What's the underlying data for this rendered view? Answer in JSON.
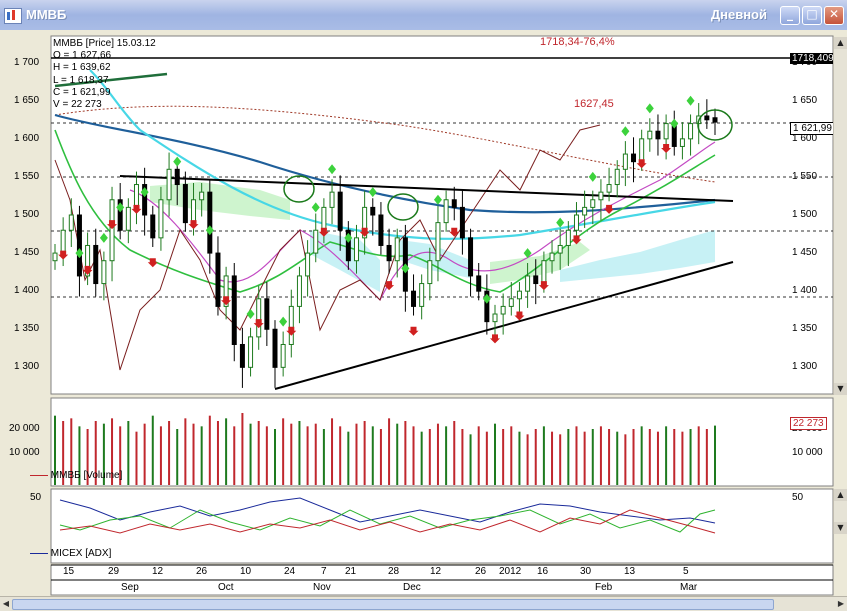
{
  "window": {
    "title": "ММВБ",
    "period": "Дневной"
  },
  "info": {
    "header": "ММВБ [Price] 15.03.12",
    "o": "O = 1 627,66",
    "h": "H = 1 639,62",
    "l": "L = 1 618,37",
    "c": "C = 1 621,99",
    "v": "V = 22 273"
  },
  "annotations": {
    "target": "1718,34-76,4%",
    "level": "1627,45"
  },
  "price_axis": {
    "ticks": [
      "1 700",
      "1 650",
      "1 600",
      "1 550",
      "1 500",
      "1 450",
      "1 400",
      "1 350",
      "1 300"
    ],
    "marker_top": "1718,409",
    "marker_last": "1 621,99"
  },
  "volume_axis": {
    "ticks": [
      "20 000",
      "10 000"
    ],
    "marker_last": "22 273",
    "series_label": "ММВБ [Volume]"
  },
  "adx_axis": {
    "ticks": [
      "50"
    ],
    "series_label": "MICEX [ADX]"
  },
  "date_axis": {
    "days": [
      "15",
      "29",
      "12",
      "26",
      "10",
      "24",
      "7",
      "21",
      "28",
      "12",
      "26",
      "2012",
      "16",
      "30",
      "13",
      "5"
    ],
    "months": [
      "Sep",
      "Oct",
      "Nov",
      "Dec",
      "Feb",
      "Mar"
    ]
  },
  "colors": {
    "up": "#1e7a1e",
    "down": "#c0272d",
    "bull_marker": "#3cd23c",
    "bear_marker": "#d02020"
  },
  "chart_data": {
    "type": "candlestick",
    "title": "ММВБ [Price] 15.03.12",
    "ylim": [
      1265,
      1735
    ],
    "last": {
      "open": 1627.66,
      "high": 1639.62,
      "low": 1618.37,
      "close": 1621.99,
      "volume": 22273
    },
    "price_close_approx": [
      1450,
      1480,
      1500,
      1420,
      1460,
      1410,
      1440,
      1520,
      1480,
      1510,
      1540,
      1500,
      1470,
      1520,
      1560,
      1540,
      1490,
      1520,
      1530,
      1450,
      1380,
      1420,
      1330,
      1300,
      1340,
      1390,
      1350,
      1300,
      1330,
      1380,
      1420,
      1450,
      1480,
      1510,
      1530,
      1480,
      1440,
      1470,
      1510,
      1500,
      1460,
      1440,
      1470,
      1400,
      1380,
      1410,
      1440,
      1490,
      1520,
      1510,
      1470,
      1420,
      1400,
      1360,
      1370,
      1380,
      1390,
      1400,
      1420,
      1410,
      1440,
      1450,
      1460,
      1480,
      1500,
      1510,
      1520,
      1530,
      1540,
      1560,
      1580,
      1570,
      1600,
      1610,
      1600,
      1620,
      1590,
      1600,
      1620,
      1630,
      1625,
      1622
    ],
    "volume_approx": [
      26000,
      24000,
      25000,
      22000,
      21000,
      24000,
      23000,
      25000,
      22000,
      24000,
      20000,
      23000,
      26000,
      22000,
      24000,
      21000,
      25000,
      23000,
      22000,
      26000,
      24000,
      25000,
      22000,
      27000,
      23000,
      24000,
      22000,
      21000,
      25000,
      23000,
      24000,
      22000,
      23000,
      21000,
      25000,
      22000,
      20000,
      23000,
      24000,
      22000,
      21000,
      25000,
      23000,
      24000,
      22000,
      20000,
      21000,
      23000,
      22000,
      24000,
      21000,
      19000,
      22000,
      20000,
      23000,
      21000,
      22000,
      20000,
      19000,
      21000,
      22000,
      20000,
      19000,
      21000,
      22000,
      20000,
      21000,
      22000,
      21000,
      20000,
      19000,
      21000,
      22000,
      21000,
      20000,
      22000,
      21000,
      20000,
      21000,
      22000,
      21000,
      22273
    ],
    "support_line": [
      [
        5,
        1260
      ],
      [
        80,
        1440
      ]
    ],
    "resistance_line": [
      [
        9,
        1557
      ],
      [
        80,
        1522
      ]
    ],
    "upper_line": [
      [
        0,
        1680
      ],
      [
        13,
        1705
      ]
    ],
    "adx_series": [
      {
        "name": "MICEX [ADX]"
      }
    ]
  }
}
